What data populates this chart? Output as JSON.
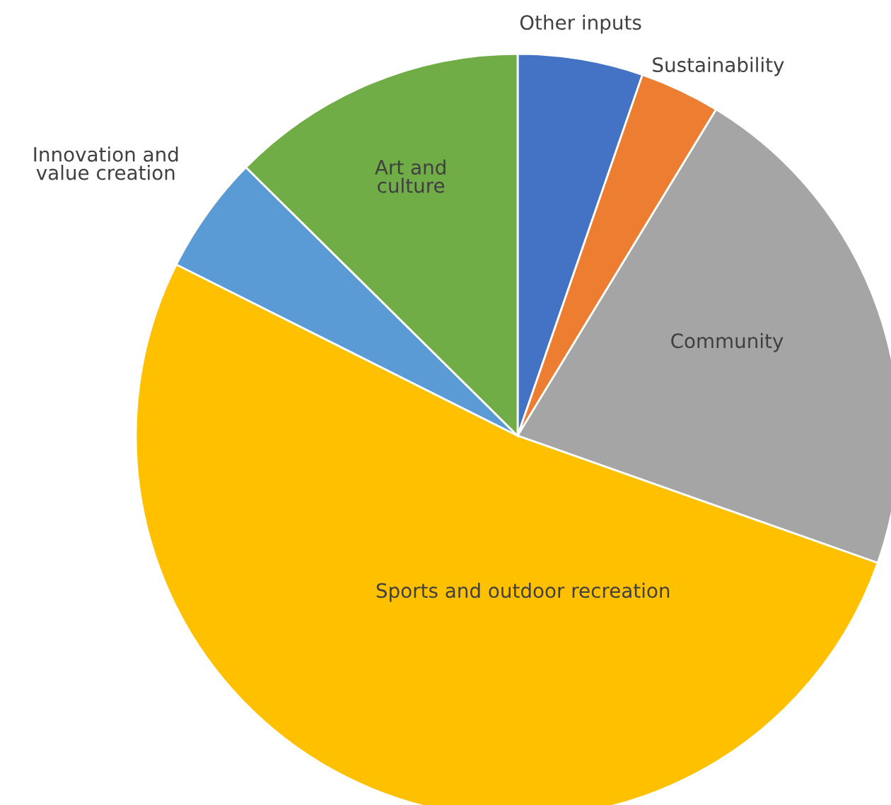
{
  "chart_data": {
    "type": "pie",
    "categories": [
      "Other inputs",
      "Sustainability",
      "Community",
      "Sports and outdoor recreation",
      "Innovation and\nvalue creation",
      "Art and\nculture"
    ],
    "values": [
      5.3,
      3.4,
      21.7,
      52.0,
      5.0,
      12.6
    ],
    "colors": [
      "#4472c4",
      "#ed7d31",
      "#a5a5a5",
      "#ffc000",
      "#5b9bd5",
      "#70ad47"
    ]
  }
}
